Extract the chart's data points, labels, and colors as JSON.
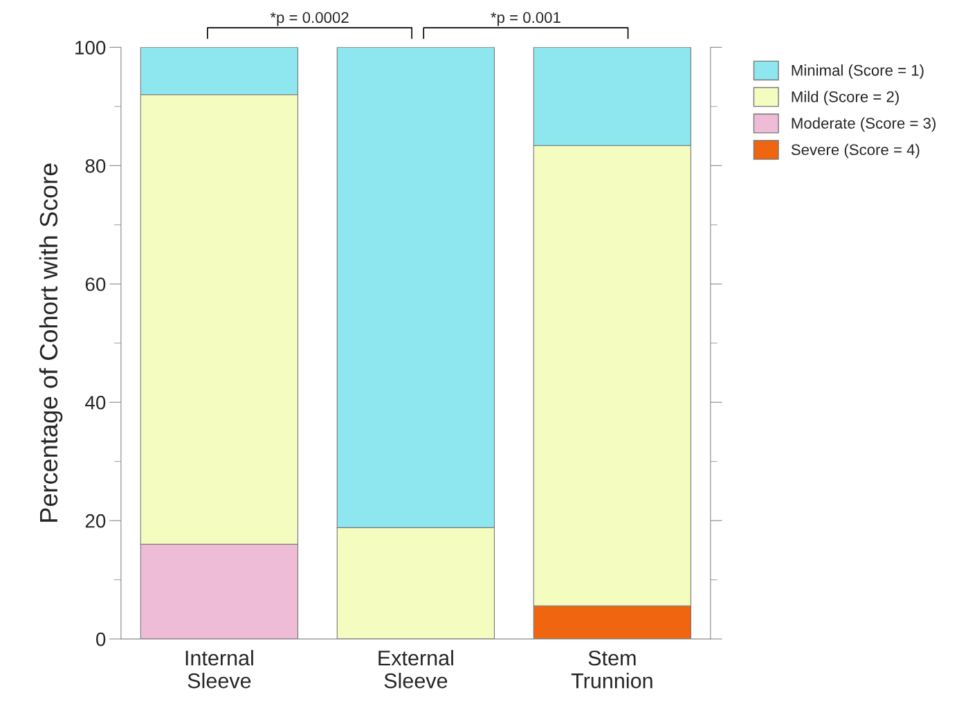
{
  "chart_data": {
    "type": "bar",
    "stacked": true,
    "ylabel": "Percentage of Cohort with Score",
    "categories": [
      "Internal\nSleeve",
      "External\nSleeve",
      "Stem\nTrunnion"
    ],
    "series": [
      {
        "name": "Severe (Score = 4)",
        "color": "#ef6510",
        "values": [
          0,
          0,
          5.6
        ]
      },
      {
        "name": "Moderate (Score = 3)",
        "color": "#efbcd8",
        "values": [
          16,
          0,
          0
        ]
      },
      {
        "name": "Mild (Score = 2)",
        "color": "#f5fcc0",
        "values": [
          76,
          18.8,
          77.8
        ]
      },
      {
        "name": "Minimal (Score = 1)",
        "color": "#8ee6ee",
        "values": [
          8,
          81.2,
          16.6
        ]
      }
    ],
    "ylim": [
      0,
      100
    ],
    "yticks": [
      0,
      20,
      40,
      60,
      80,
      100
    ],
    "annotations": [
      "*p = 0.0002",
      "*p = 0.001"
    ],
    "legend": "top right",
    "grid": false
  }
}
